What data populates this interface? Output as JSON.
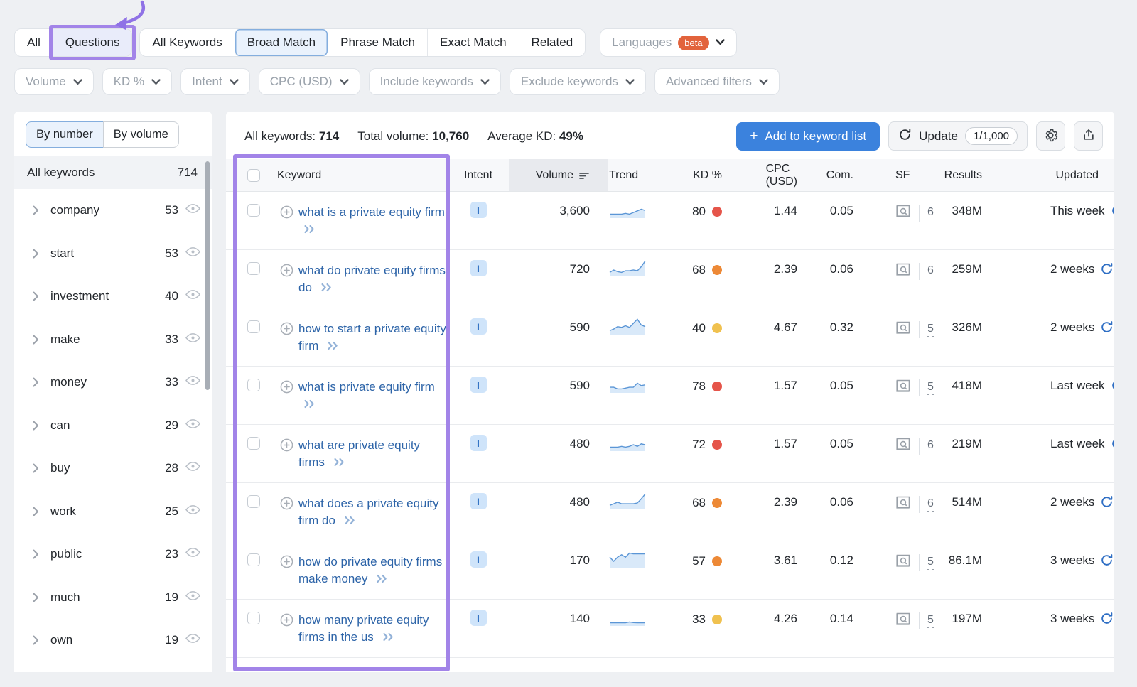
{
  "tabs": {
    "group1": [
      "All",
      "Questions"
    ],
    "group2": [
      "All Keywords",
      "Broad Match",
      "Phrase Match",
      "Exact Match",
      "Related"
    ],
    "languages": "Languages",
    "beta": "beta"
  },
  "filters": [
    "Volume",
    "KD %",
    "Intent",
    "CPC (USD)",
    "Include keywords",
    "Exclude keywords",
    "Advanced filters"
  ],
  "sidebar": {
    "by_number": "By number",
    "by_volume": "By volume",
    "all_label": "All keywords",
    "all_count": "714",
    "items": [
      {
        "label": "company",
        "count": "53"
      },
      {
        "label": "start",
        "count": "53"
      },
      {
        "label": "investment",
        "count": "40"
      },
      {
        "label": "make",
        "count": "33"
      },
      {
        "label": "money",
        "count": "33"
      },
      {
        "label": "can",
        "count": "29"
      },
      {
        "label": "buy",
        "count": "28"
      },
      {
        "label": "work",
        "count": "25"
      },
      {
        "label": "public",
        "count": "23"
      },
      {
        "label": "much",
        "count": "19"
      },
      {
        "label": "own",
        "count": "19"
      }
    ]
  },
  "stats": {
    "all_keywords_label": "All keywords:",
    "all_keywords_value": "714",
    "total_volume_label": "Total volume:",
    "total_volume_value": "10,760",
    "avg_kd_label": "Average KD:",
    "avg_kd_value": "49%"
  },
  "actions": {
    "add_to_list": "Add to keyword list",
    "update": "Update",
    "update_quota": "1/1,000"
  },
  "table": {
    "headers": {
      "keyword": "Keyword",
      "intent": "Intent",
      "volume": "Volume",
      "trend": "Trend",
      "kd": "KD %",
      "cpc": "CPC (USD)",
      "com": "Com.",
      "sf": "SF",
      "results": "Results",
      "updated": "Updated"
    },
    "rows": [
      {
        "keyword": "what is a private equity firm",
        "intent": "I",
        "volume": "3,600",
        "kd": "80",
        "kd_level": "red",
        "cpc": "1.44",
        "com": "0.05",
        "sf": "6",
        "results": "348M",
        "updated": "This week",
        "trend": [
          2,
          2,
          2,
          2,
          2.5,
          2,
          3,
          4,
          5,
          4.2
        ]
      },
      {
        "keyword": "what do private equity firms do",
        "intent": "I",
        "volume": "720",
        "kd": "68",
        "kd_level": "orange",
        "cpc": "2.39",
        "com": "0.06",
        "sf": "6",
        "results": "259M",
        "updated": "2 weeks",
        "trend": [
          2,
          3.5,
          2.5,
          2,
          3,
          3,
          3.5,
          3,
          5.5,
          9
        ]
      },
      {
        "keyword": "how to start a private equity firm",
        "intent": "I",
        "volume": "590",
        "kd": "40",
        "kd_level": "yellow",
        "cpc": "4.67",
        "com": "0.32",
        "sf": "5",
        "results": "326M",
        "updated": "2 weeks",
        "trend": [
          2,
          3,
          4.5,
          4,
          5,
          4,
          6.5,
          9,
          5.5,
          4.5
        ]
      },
      {
        "keyword": "what is private equity firm",
        "intent": "I",
        "volume": "590",
        "kd": "78",
        "kd_level": "red",
        "cpc": "1.57",
        "com": "0.05",
        "sf": "5",
        "results": "418M",
        "updated": "Last week",
        "trend": [
          3,
          3,
          2,
          2,
          2.5,
          3,
          3,
          5.5,
          4,
          4.5
        ]
      },
      {
        "keyword": "what are private equity firms",
        "intent": "I",
        "volume": "480",
        "kd": "72",
        "kd_level": "red",
        "cpc": "1.57",
        "com": "0.05",
        "sf": "6",
        "results": "219M",
        "updated": "Last week",
        "trend": [
          2,
          2,
          2,
          2.5,
          2,
          2.5,
          3.5,
          2.5,
          4,
          3.5
        ]
      },
      {
        "keyword": "what does a private equity firm do",
        "intent": "I",
        "volume": "480",
        "kd": "68",
        "kd_level": "orange",
        "cpc": "2.39",
        "com": "0.06",
        "sf": "6",
        "results": "514M",
        "updated": "2 weeks",
        "trend": [
          2,
          3,
          4,
          3,
          3,
          3,
          3,
          3.5,
          6,
          9
        ]
      },
      {
        "keyword": "how do private equity firms make money",
        "intent": "I",
        "volume": "170",
        "kd": "57",
        "kd_level": "orange",
        "cpc": "3.61",
        "com": "0.12",
        "sf": "5",
        "results": "86.1M",
        "updated": "3 weeks",
        "trend": [
          6,
          3.5,
          6,
          7.5,
          6,
          8.5,
          8,
          8,
          8,
          8
        ]
      },
      {
        "keyword": "how many private equity firms in the us",
        "intent": "I",
        "volume": "140",
        "kd": "33",
        "kd_level": "yellow",
        "cpc": "4.26",
        "com": "0.14",
        "sf": "5",
        "results": "197M",
        "updated": "3 weeks",
        "trend": [
          1.5,
          1.5,
          1.5,
          1.5,
          1.5,
          2,
          1.6,
          1.5,
          1.5,
          1.5
        ]
      }
    ]
  },
  "colors": {
    "kd_red": "#e5554a",
    "kd_orange": "#ed8936",
    "kd_yellow": "#f0c14f",
    "accent_blue": "#3b82dd",
    "annotation_purple": "#a284e8",
    "spark_line": "#5b96d6",
    "spark_fill": "#d9e9f9"
  }
}
